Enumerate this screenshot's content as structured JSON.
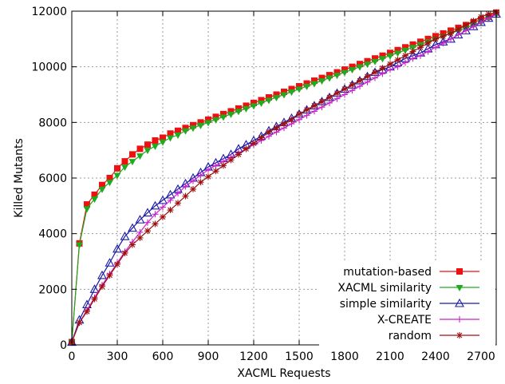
{
  "chart_data": {
    "type": "line",
    "xlabel": "XACML Requests",
    "ylabel": "Killed Mutants",
    "xlim": [
      0,
      2800
    ],
    "ylim": [
      0,
      12000
    ],
    "xticks": [
      0,
      300,
      600,
      900,
      1200,
      1500,
      1800,
      2100,
      2400,
      2700
    ],
    "yticks": [
      0,
      2000,
      4000,
      6000,
      8000,
      10000,
      12000
    ],
    "grid": true,
    "legend_position": "bottom-right",
    "x": [
      0,
      50,
      100,
      150,
      200,
      250,
      300,
      350,
      400,
      450,
      500,
      550,
      600,
      650,
      700,
      750,
      800,
      850,
      900,
      950,
      1000,
      1050,
      1100,
      1150,
      1200,
      1250,
      1300,
      1350,
      1400,
      1450,
      1500,
      1550,
      1600,
      1650,
      1700,
      1750,
      1800,
      1850,
      1900,
      1950,
      2000,
      2050,
      2100,
      2150,
      2200,
      2250,
      2300,
      2350,
      2400,
      2450,
      2500,
      2550,
      2600,
      2650,
      2700,
      2750,
      2800
    ],
    "series": [
      {
        "name": "mutation-based",
        "color": "#ee1111",
        "marker": "filled-square",
        "values": [
          100,
          3650,
          5050,
          5400,
          5750,
          6000,
          6350,
          6600,
          6850,
          7050,
          7200,
          7350,
          7450,
          7600,
          7700,
          7800,
          7900,
          8000,
          8100,
          8200,
          8300,
          8400,
          8500,
          8600,
          8700,
          8800,
          8900,
          9000,
          9100,
          9200,
          9300,
          9400,
          9500,
          9600,
          9700,
          9800,
          9900,
          10000,
          10100,
          10200,
          10300,
          10400,
          10500,
          10600,
          10700,
          10800,
          10900,
          11000,
          11100,
          11200,
          11300,
          11400,
          11500,
          11600,
          11700,
          11800,
          11950
        ]
      },
      {
        "name": "XACML similarity",
        "color": "#1faa1f",
        "marker": "filled-triangle-down",
        "values": [
          100,
          3600,
          4900,
          5250,
          5600,
          5850,
          6100,
          6400,
          6600,
          6800,
          7000,
          7150,
          7300,
          7450,
          7550,
          7700,
          7800,
          7900,
          8000,
          8100,
          8200,
          8300,
          8400,
          8500,
          8600,
          8700,
          8800,
          8900,
          9000,
          9100,
          9200,
          9300,
          9400,
          9500,
          9600,
          9700,
          9800,
          9900,
          10000,
          10100,
          10200,
          10300,
          10400,
          10500,
          10600,
          10700,
          10800,
          10900,
          11000,
          11100,
          11200,
          11300,
          11400,
          11500,
          11600,
          11750,
          11900
        ]
      },
      {
        "name": "simple similarity",
        "color": "#1a1aa8",
        "marker": "open-triangle-up",
        "values": [
          100,
          900,
          1450,
          2000,
          2500,
          2950,
          3450,
          3900,
          4200,
          4500,
          4750,
          5000,
          5200,
          5400,
          5600,
          5800,
          6000,
          6200,
          6400,
          6550,
          6700,
          6850,
          7050,
          7200,
          7350,
          7500,
          7700,
          7850,
          8000,
          8150,
          8300,
          8450,
          8600,
          8750,
          8900,
          9050,
          9200,
          9350,
          9500,
          9650,
          9800,
          9900,
          10000,
          10150,
          10300,
          10400,
          10500,
          10650,
          10800,
          10900,
          11000,
          11150,
          11300,
          11450,
          11600,
          11750,
          11900
        ]
      },
      {
        "name": "X-CREATE",
        "color": "#cc22cc",
        "marker": "plus",
        "values": [
          100,
          800,
          1250,
          1700,
          2150,
          2550,
          2950,
          3350,
          3700,
          4050,
          4400,
          4700,
          4950,
          5200,
          5450,
          5700,
          5900,
          6100,
          6300,
          6450,
          6600,
          6750,
          6900,
          7050,
          7200,
          7350,
          7500,
          7650,
          7800,
          7950,
          8100,
          8250,
          8400,
          8550,
          8700,
          8850,
          9000,
          9150,
          9300,
          9450,
          9600,
          9750,
          9900,
          10000,
          10150,
          10300,
          10400,
          10550,
          10700,
          10850,
          11000,
          11150,
          11300,
          11450,
          11600,
          11750,
          11900
        ]
      },
      {
        "name": "random",
        "color": "#a01010",
        "marker": "star",
        "values": [
          100,
          800,
          1200,
          1650,
          2100,
          2500,
          2900,
          3300,
          3600,
          3850,
          4100,
          4350,
          4600,
          4850,
          5100,
          5350,
          5600,
          5850,
          6050,
          6250,
          6450,
          6650,
          6850,
          7050,
          7250,
          7450,
          7650,
          7800,
          7950,
          8100,
          8300,
          8450,
          8600,
          8750,
          8900,
          9050,
          9200,
          9350,
          9500,
          9650,
          9800,
          9950,
          10100,
          10250,
          10400,
          10550,
          10700,
          10850,
          11000,
          11100,
          11200,
          11350,
          11500,
          11650,
          11800,
          11900,
          11950
        ]
      }
    ]
  }
}
